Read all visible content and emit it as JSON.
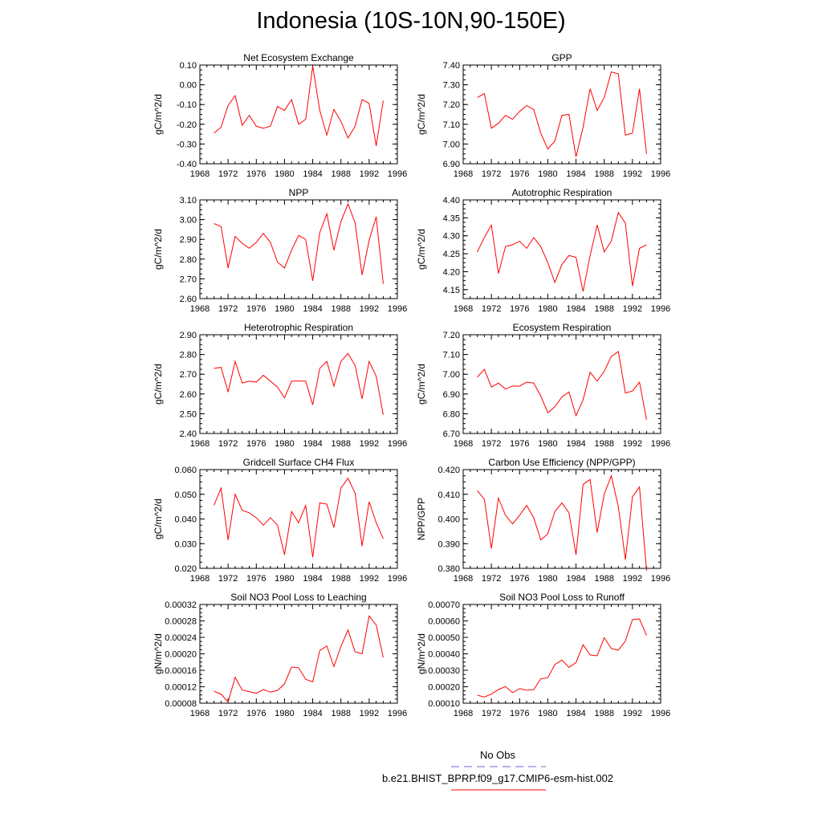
{
  "page": {
    "title": "Indonesia (10S-10N,90-150E)"
  },
  "legend": {
    "obs_label": "No Obs",
    "obs_color": "#6666dd",
    "run_label": "b.e21.BHIST_BPRP.f09_g17.CMIP6-esm-hist.002",
    "run_color": "#ff0000"
  },
  "chart_data": [
    {
      "type": "line",
      "title": "Net Ecosystem Exchange",
      "ylabel": "gC/m^2/d",
      "xlim": [
        1968,
        1996
      ],
      "x_ticks": [
        "1968",
        "1972",
        "1976",
        "1980",
        "1984",
        "1988",
        "1992",
        "1996"
      ],
      "ylim": [
        -0.4,
        0.1
      ],
      "y_ticks": [
        "-0.40",
        "-0.30",
        "-0.20",
        "-0.10",
        "0.00",
        "0.10"
      ],
      "x": [
        1970,
        1971,
        1972,
        1973,
        1974,
        1975,
        1976,
        1977,
        1978,
        1979,
        1980,
        1981,
        1982,
        1983,
        1984,
        1985,
        1986,
        1987,
        1988,
        1989,
        1990,
        1991,
        1992,
        1993,
        1994
      ],
      "series": [
        {
          "name": "b.e21.BHIST_BPRP.f09_g17.CMIP6-esm-hist.002",
          "values": [
            -0.245,
            -0.215,
            -0.105,
            -0.055,
            -0.205,
            -0.155,
            -0.21,
            -0.22,
            -0.21,
            -0.11,
            -0.13,
            -0.075,
            -0.2,
            -0.175,
            0.095,
            -0.13,
            -0.255,
            -0.125,
            -0.185,
            -0.27,
            -0.21,
            -0.075,
            -0.095,
            -0.31,
            -0.08
          ]
        }
      ]
    },
    {
      "type": "line",
      "title": "GPP",
      "ylabel": "gC/m^2/d",
      "xlim": [
        1968,
        1996
      ],
      "x_ticks": [
        "1968",
        "1972",
        "1976",
        "1980",
        "1984",
        "1988",
        "1992",
        "1996"
      ],
      "ylim": [
        6.9,
        7.4
      ],
      "y_ticks": [
        "6.90",
        "7.00",
        "7.10",
        "7.20",
        "7.30",
        "7.40"
      ],
      "x": [
        1970,
        1971,
        1972,
        1973,
        1974,
        1975,
        1976,
        1977,
        1978,
        1979,
        1980,
        1981,
        1982,
        1983,
        1984,
        1985,
        1986,
        1987,
        1988,
        1989,
        1990,
        1991,
        1992,
        1993,
        1994
      ],
      "series": [
        {
          "name": "b.e21.BHIST_BPRP.f09_g17.CMIP6-esm-hist.002",
          "values": [
            7.235,
            7.255,
            7.08,
            7.105,
            7.145,
            7.125,
            7.165,
            7.195,
            7.175,
            7.055,
            6.975,
            7.015,
            7.145,
            7.15,
            6.935,
            7.085,
            7.28,
            7.17,
            7.235,
            7.365,
            7.355,
            7.045,
            7.055,
            7.28,
            6.95
          ]
        }
      ]
    },
    {
      "type": "line",
      "title": "NPP",
      "ylabel": "gC/m^2/d",
      "xlim": [
        1968,
        1996
      ],
      "x_ticks": [
        "1968",
        "1972",
        "1976",
        "1980",
        "1984",
        "1988",
        "1992",
        "1996"
      ],
      "ylim": [
        2.6,
        3.1
      ],
      "y_ticks": [
        "2.60",
        "2.70",
        "2.80",
        "2.90",
        "3.00",
        "3.10"
      ],
      "x": [
        1970,
        1971,
        1972,
        1973,
        1974,
        1975,
        1976,
        1977,
        1978,
        1979,
        1980,
        1981,
        1982,
        1983,
        1984,
        1985,
        1986,
        1987,
        1988,
        1989,
        1990,
        1991,
        1992,
        1993,
        1994
      ],
      "series": [
        {
          "name": "b.e21.BHIST_BPRP.f09_g17.CMIP6-esm-hist.002",
          "values": [
            2.98,
            2.965,
            2.755,
            2.915,
            2.88,
            2.855,
            2.885,
            2.93,
            2.885,
            2.785,
            2.755,
            2.845,
            2.92,
            2.9,
            2.69,
            2.935,
            3.03,
            2.845,
            2.99,
            3.08,
            2.985,
            2.72,
            2.895,
            3.015,
            2.675
          ]
        }
      ]
    },
    {
      "type": "line",
      "title": "Autotrophic Respiration",
      "ylabel": "gC/m^2/d",
      "xlim": [
        1968,
        1996
      ],
      "x_ticks": [
        "1968",
        "1972",
        "1976",
        "1980",
        "1984",
        "1988",
        "1992",
        "1996"
      ],
      "ylim": [
        4.125,
        4.4
      ],
      "y_ticks": [
        "4.15",
        "4.20",
        "4.25",
        "4.30",
        "4.35",
        "4.40"
      ],
      "x": [
        1970,
        1971,
        1972,
        1973,
        1974,
        1975,
        1976,
        1977,
        1978,
        1979,
        1980,
        1981,
        1982,
        1983,
        1984,
        1985,
        1986,
        1987,
        1988,
        1989,
        1990,
        1991,
        1992,
        1993,
        1994
      ],
      "series": [
        {
          "name": "b.e21.BHIST_BPRP.f09_g17.CMIP6-esm-hist.002",
          "values": [
            4.255,
            4.295,
            4.33,
            4.195,
            4.27,
            4.275,
            4.285,
            4.265,
            4.295,
            4.27,
            4.225,
            4.17,
            4.22,
            4.245,
            4.24,
            4.145,
            4.245,
            4.33,
            4.255,
            4.285,
            4.365,
            4.335,
            4.16,
            4.265,
            4.275
          ]
        }
      ]
    },
    {
      "type": "line",
      "title": "Heterotrophic Respiration",
      "ylabel": "gC/m^2/d",
      "xlim": [
        1968,
        1996
      ],
      "x_ticks": [
        "1968",
        "1972",
        "1976",
        "1980",
        "1984",
        "1988",
        "1992",
        "1996"
      ],
      "ylim": [
        2.4,
        2.9
      ],
      "y_ticks": [
        "2.40",
        "2.50",
        "2.60",
        "2.70",
        "2.80",
        "2.90"
      ],
      "x": [
        1970,
        1971,
        1972,
        1973,
        1974,
        1975,
        1976,
        1977,
        1978,
        1979,
        1980,
        1981,
        1982,
        1983,
        1984,
        1985,
        1986,
        1987,
        1988,
        1989,
        1990,
        1991,
        1992,
        1993,
        1994
      ],
      "series": [
        {
          "name": "b.e21.BHIST_BPRP.f09_g17.CMIP6-esm-hist.002",
          "values": [
            2.73,
            2.735,
            2.61,
            2.765,
            2.655,
            2.665,
            2.66,
            2.695,
            2.665,
            2.635,
            2.58,
            2.665,
            2.665,
            2.665,
            2.545,
            2.73,
            2.765,
            2.64,
            2.765,
            2.805,
            2.745,
            2.575,
            2.765,
            2.69,
            2.495
          ]
        }
      ]
    },
    {
      "type": "line",
      "title": "Ecosystem Respiration",
      "ylabel": "gC/m^2/d",
      "xlim": [
        1968,
        1996
      ],
      "x_ticks": [
        "1968",
        "1972",
        "1976",
        "1980",
        "1984",
        "1988",
        "1992",
        "1996"
      ],
      "ylim": [
        6.7,
        7.2
      ],
      "y_ticks": [
        "6.70",
        "6.80",
        "6.90",
        "7.00",
        "7.10",
        "7.20"
      ],
      "x": [
        1970,
        1971,
        1972,
        1973,
        1974,
        1975,
        1976,
        1977,
        1978,
        1979,
        1980,
        1981,
        1982,
        1983,
        1984,
        1985,
        1986,
        1987,
        1988,
        1989,
        1990,
        1991,
        1992,
        1993,
        1994
      ],
      "series": [
        {
          "name": "b.e21.BHIST_BPRP.f09_g17.CMIP6-esm-hist.002",
          "values": [
            6.985,
            7.025,
            6.935,
            6.955,
            6.925,
            6.94,
            6.94,
            6.96,
            6.955,
            6.89,
            6.805,
            6.835,
            6.885,
            6.91,
            6.79,
            6.87,
            7.01,
            6.965,
            7.015,
            7.09,
            7.115,
            6.905,
            6.915,
            6.96,
            6.77
          ]
        }
      ]
    },
    {
      "type": "line",
      "title": "Gridcell Surface CH4 Flux",
      "ylabel": "gC/m^2/d",
      "xlim": [
        1968,
        1996
      ],
      "x_ticks": [
        "1968",
        "1972",
        "1976",
        "1980",
        "1984",
        "1988",
        "1992",
        "1996"
      ],
      "ylim": [
        0.02,
        0.06
      ],
      "y_ticks": [
        "0.020",
        "0.030",
        "0.040",
        "0.050",
        "0.060"
      ],
      "x": [
        1970,
        1971,
        1972,
        1973,
        1974,
        1975,
        1976,
        1977,
        1978,
        1979,
        1980,
        1981,
        1982,
        1983,
        1984,
        1985,
        1986,
        1987,
        1988,
        1989,
        1990,
        1991,
        1992,
        1993,
        1994
      ],
      "series": [
        {
          "name": "b.e21.BHIST_BPRP.f09_g17.CMIP6-esm-hist.002",
          "values": [
            0.0455,
            0.0525,
            0.0315,
            0.05,
            0.0435,
            0.0425,
            0.0405,
            0.0375,
            0.0405,
            0.0375,
            0.0255,
            0.043,
            0.0385,
            0.0455,
            0.0245,
            0.0465,
            0.046,
            0.0365,
            0.0525,
            0.0565,
            0.0505,
            0.029,
            0.047,
            0.0385,
            0.032
          ]
        }
      ]
    },
    {
      "type": "line",
      "title": "Carbon Use Efficiency (NPP/GPP)",
      "ylabel": "NPP/GPP",
      "xlim": [
        1968,
        1996
      ],
      "x_ticks": [
        "1968",
        "1972",
        "1976",
        "1980",
        "1984",
        "1988",
        "1992",
        "1996"
      ],
      "ylim": [
        0.38,
        0.42
      ],
      "y_ticks": [
        "0.380",
        "0.390",
        "0.400",
        "0.410",
        "0.420"
      ],
      "x": [
        1970,
        1971,
        1972,
        1973,
        1974,
        1975,
        1976,
        1977,
        1978,
        1979,
        1980,
        1981,
        1982,
        1983,
        1984,
        1985,
        1986,
        1987,
        1988,
        1989,
        1990,
        1991,
        1992,
        1993,
        1994
      ],
      "series": [
        {
          "name": "b.e21.BHIST_BPRP.f09_g17.CMIP6-esm-hist.002",
          "values": [
            0.4115,
            0.408,
            0.388,
            0.4085,
            0.4015,
            0.398,
            0.4015,
            0.4055,
            0.4005,
            0.3915,
            0.394,
            0.403,
            0.4065,
            0.4025,
            0.3855,
            0.414,
            0.416,
            0.3945,
            0.41,
            0.4175,
            0.405,
            0.3835,
            0.409,
            0.413,
            0.379
          ]
        }
      ]
    },
    {
      "type": "line",
      "title": "Soil NO3 Pool Loss to Leaching",
      "ylabel": "gN/m^2/d",
      "xlim": [
        1968,
        1996
      ],
      "x_ticks": [
        "1968",
        "1972",
        "1976",
        "1980",
        "1984",
        "1988",
        "1992",
        "1996"
      ],
      "ylim": [
        8e-05,
        0.00032
      ],
      "y_ticks": [
        "0.00008",
        "0.00012",
        "0.00016",
        "0.00020",
        "0.00024",
        "0.00028",
        "0.00032"
      ],
      "x": [
        1970,
        1971,
        1972,
        1973,
        1974,
        1975,
        1976,
        1977,
        1978,
        1979,
        1980,
        1981,
        1982,
        1983,
        1984,
        1985,
        1986,
        1987,
        1988,
        1989,
        1990,
        1991,
        1992,
        1993,
        1994
      ],
      "series": [
        {
          "name": "b.e21.BHIST_BPRP.f09_g17.CMIP6-esm-hist.002",
          "values": [
            0.000109,
            0.000102,
            8.3e-05,
            0.000143,
            0.000112,
            0.000108,
            0.000104,
            0.000113,
            0.000107,
            0.000111,
            0.000127,
            0.000168,
            0.000166,
            0.000138,
            0.000132,
            0.000208,
            0.000219,
            0.000169,
            0.000218,
            0.000258,
            0.000205,
            0.0002,
            0.000292,
            0.00027,
            0.000191
          ]
        }
      ]
    },
    {
      "type": "line",
      "title": "Soil NO3 Pool Loss to Runoff",
      "ylabel": "gN/m^2/d",
      "xlim": [
        1968,
        1996
      ],
      "x_ticks": [
        "1968",
        "1972",
        "1976",
        "1980",
        "1984",
        "1988",
        "1992",
        "1996"
      ],
      "ylim": [
        0.0001,
        0.0007
      ],
      "y_ticks": [
        "0.00010",
        "0.00020",
        "0.00030",
        "0.00040",
        "0.00050",
        "0.00060",
        "0.00070"
      ],
      "x": [
        1970,
        1971,
        1972,
        1973,
        1974,
        1975,
        1976,
        1977,
        1978,
        1979,
        1980,
        1981,
        1982,
        1983,
        1984,
        1985,
        1986,
        1987,
        1988,
        1989,
        1990,
        1991,
        1992,
        1993,
        1994
      ],
      "series": [
        {
          "name": "b.e21.BHIST_BPRP.f09_g17.CMIP6-esm-hist.002",
          "values": [
            0.000148,
            0.000138,
            0.000155,
            0.000183,
            0.000201,
            0.000164,
            0.000189,
            0.000179,
            0.000182,
            0.000248,
            0.000255,
            0.000335,
            0.000362,
            0.000318,
            0.000347,
            0.000455,
            0.000393,
            0.000388,
            0.000498,
            0.000432,
            0.000422,
            0.000478,
            0.000608,
            0.000612,
            0.000512
          ]
        }
      ]
    }
  ]
}
